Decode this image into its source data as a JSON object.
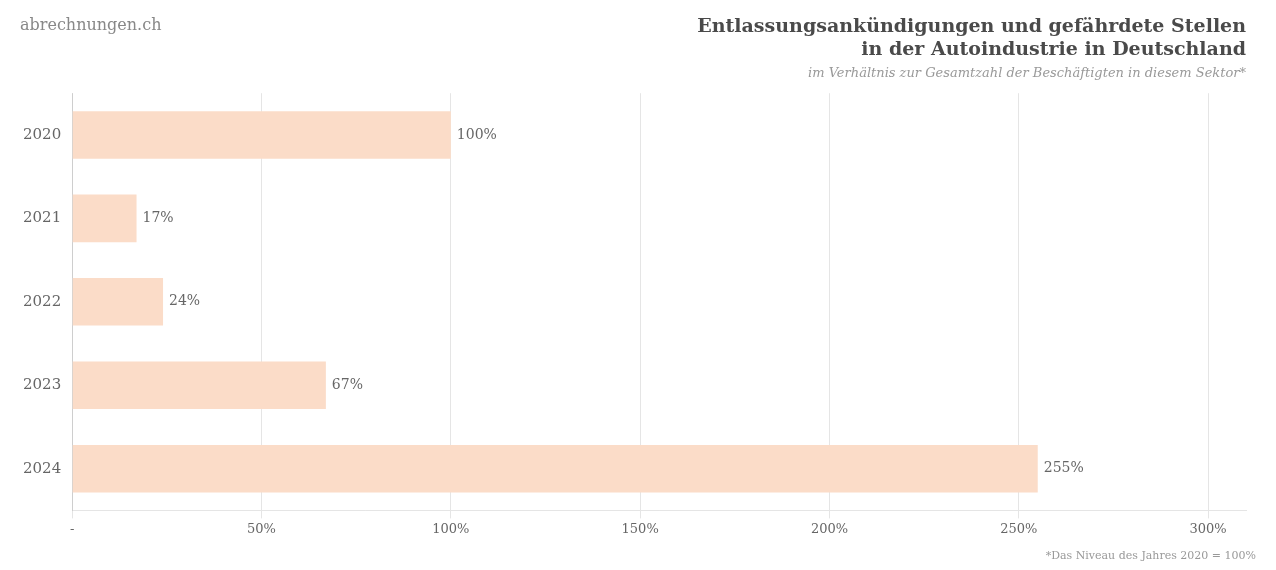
{
  "chart_data": {
    "type": "bar",
    "orientation": "horizontal",
    "title": [
      "Entlassungsankündigungen und gefährdete Stellen",
      "in der Autoindustrie in Deutschland"
    ],
    "subtitle": "im Verhältnis zur Gesamtzahl der Beschäftigten in diesem Sektor*",
    "annotations": [
      "abrechnungen.ch",
      "*Das Niveau des Jahres 2020 = 100%"
    ],
    "categories": [
      "2020",
      "2021",
      "2022",
      "2023",
      "2024"
    ],
    "values": [
      100,
      17,
      24,
      67,
      255
    ],
    "value_labels": [
      "100%",
      "17%",
      "24%",
      "67%",
      "255%"
    ],
    "data_labels": true,
    "color": "#FBDCC8",
    "xlim": [
      0,
      310
    ],
    "xticks": [
      {
        "value": 0,
        "label": "-"
      },
      {
        "value": 50,
        "label": "50%"
      },
      {
        "value": 100,
        "label": "100%"
      },
      {
        "value": 150,
        "label": "150%"
      },
      {
        "value": 200,
        "label": "200%"
      },
      {
        "value": 250,
        "label": "250%"
      },
      {
        "value": 300,
        "label": "300%"
      }
    ],
    "grid": true
  }
}
